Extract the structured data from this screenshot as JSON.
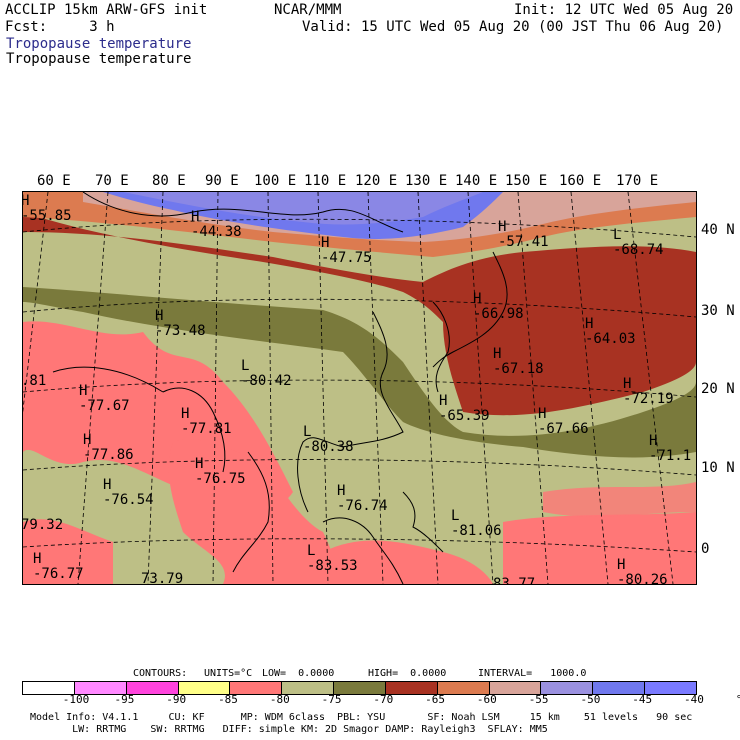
{
  "header": {
    "line1_left": "ACCLIP 15km ARW-GFS init",
    "line1_center": "NCAR/MMM",
    "line1_right": "Init: 12 UTC Wed 05 Aug 20",
    "line2_left": "Fcst:     3 h",
    "line2_right": "Valid: 15 UTC Wed 05 Aug 20 (00 JST Thu 06 Aug 20)",
    "field_title_1": "Tropopause temperature",
    "field_title_2": "Tropopause temperature"
  },
  "map": {
    "lon_labels": [
      "60 E",
      "70 E",
      "80 E",
      "90 E",
      "100 E",
      "110 E",
      "120 E",
      "130 E",
      "140 E",
      "150 E",
      "160 E",
      "170 E"
    ],
    "lat_labels": [
      "40 N",
      "30 N",
      "20 N",
      "10 N",
      "0"
    ],
    "extrema": [
      {
        "type": "H",
        "value": "-55.85"
      },
      {
        "type": "H",
        "value": "-44.38"
      },
      {
        "type": "H",
        "value": "-47.75"
      },
      {
        "type": "H",
        "value": "-57.41"
      },
      {
        "type": "L",
        "value": "-68.74"
      },
      {
        "type": "H",
        "value": "-73.48"
      },
      {
        "type": "H",
        "value": "-66.98"
      },
      {
        "type": "H",
        "value": "-64.03"
      },
      {
        "type": "L",
        "value": "-80.42"
      },
      {
        "type": "H",
        "value": "-77.67"
      },
      {
        "type": "H",
        "value": "-67.18"
      },
      {
        "type": "H",
        "value": "-65.39"
      },
      {
        "type": "H",
        "value": "-67.66"
      },
      {
        "type": "H",
        "value": "-72.19"
      },
      {
        "type": "H",
        "value": "-77.81"
      },
      {
        "type": "H",
        "value": "-77.86"
      },
      {
        "type": "L",
        "value": "-80.38"
      },
      {
        "type": "H",
        "value": "-71.1"
      },
      {
        "type": "H",
        "value": "-76.75"
      },
      {
        "type": "H",
        "value": "-76.54"
      },
      {
        "type": "H",
        "value": "-76.74"
      },
      {
        "type": "L",
        "value": "-81.06"
      },
      {
        "type": "H",
        "value": "-76.77"
      },
      {
        "type": "L",
        "value": "-83.53"
      },
      {
        "type": "H",
        "value": "-80.26"
      }
    ],
    "edge_fragments": [
      ".81",
      "79.32",
      "73.79",
      "83.77"
    ]
  },
  "contour_info": {
    "contours_label": "CONTOURS:",
    "units": "UNITS=°C",
    "low": "LOW=  0.0000",
    "high": "HIGH=  0.0000",
    "interval": "INTERVAL=   1000.0"
  },
  "colorbar": {
    "colors": [
      "#ffffff",
      "#ff88ff",
      "#ff44dd",
      "#ffff88",
      "#ff7777",
      "#bdbf86",
      "#7a7a3c",
      "#a83222",
      "#dc7b50",
      "#d8a49a",
      "#9b91e0",
      "#7078ee",
      "#7a7aff"
    ],
    "tick_labels": [
      "-100",
      "-95",
      "-90",
      "-85",
      "-80",
      "-75",
      "-70",
      "-65",
      "-60",
      "-55",
      "-50",
      "-45",
      "-40",
      "°C"
    ]
  },
  "footer": {
    "line1": "Model Info: V4.1.1     CU: KF      MP: WDM 6class  PBL: YSU       SF: Noah LSM     15 km    51 levels   90 sec",
    "line2": "       LW: RRTMG    SW: RRTMG   DIFF: simple KM: 2D Smagor DAMP: Rayleigh3  SFLAY: MM5"
  }
}
